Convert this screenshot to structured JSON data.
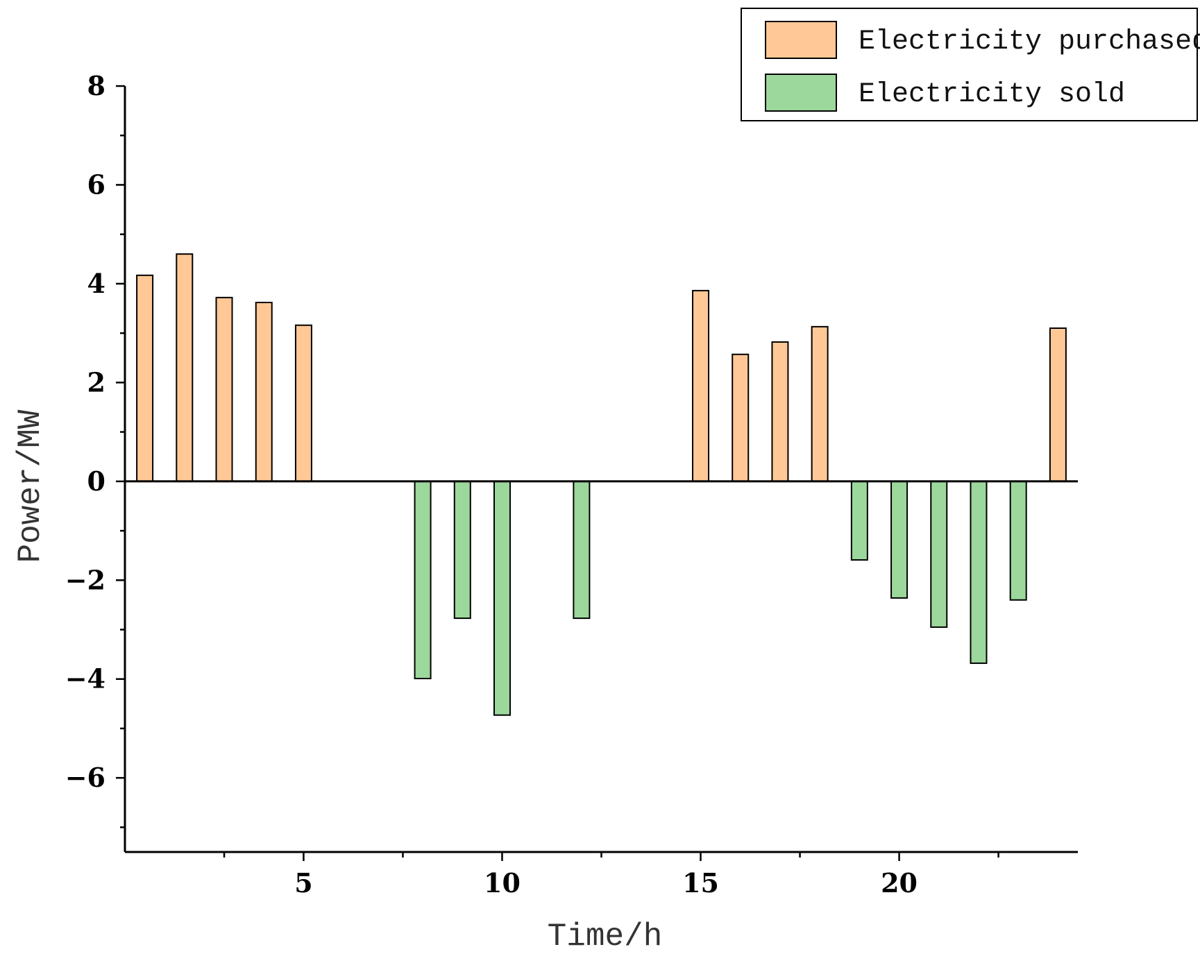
{
  "chart_data": {
    "type": "bar",
    "title": "",
    "xlabel": "Time/h",
    "ylabel": "Power/MW",
    "xlim": [
      0.5,
      24.5
    ],
    "ylim": [
      -7.5,
      8
    ],
    "x_major_ticks": [
      5,
      10,
      15,
      20
    ],
    "x_minor_ticks": [
      3,
      7.5,
      12.5,
      17.5,
      22.5
    ],
    "y_ticks": [
      -6,
      -4,
      -2,
      0,
      2,
      4,
      6,
      8
    ],
    "y_tick_labels": [
      "−6",
      "−4",
      "−2",
      "0",
      "2",
      "4",
      "6",
      "8"
    ],
    "legend_position": "top-right",
    "series": [
      {
        "name": "Electricity purchased",
        "color": "#FFC896",
        "points": [
          {
            "x": 1,
            "y": 4.17
          },
          {
            "x": 2,
            "y": 4.6
          },
          {
            "x": 3,
            "y": 3.72
          },
          {
            "x": 4,
            "y": 3.62
          },
          {
            "x": 5,
            "y": 3.16
          },
          {
            "x": 15,
            "y": 3.86
          },
          {
            "x": 16,
            "y": 2.57
          },
          {
            "x": 17,
            "y": 2.82
          },
          {
            "x": 18,
            "y": 3.13
          },
          {
            "x": 24,
            "y": 3.1
          }
        ]
      },
      {
        "name": "Electricity sold",
        "color": "#9CD79C",
        "points": [
          {
            "x": 8,
            "y": -3.99
          },
          {
            "x": 9,
            "y": -2.77
          },
          {
            "x": 10,
            "y": -4.73
          },
          {
            "x": 12,
            "y": -2.77
          },
          {
            "x": 19,
            "y": -1.59
          },
          {
            "x": 20,
            "y": -2.36
          },
          {
            "x": 21,
            "y": -2.95
          },
          {
            "x": 22,
            "y": -3.68
          },
          {
            "x": 23,
            "y": -2.4
          }
        ]
      }
    ]
  }
}
